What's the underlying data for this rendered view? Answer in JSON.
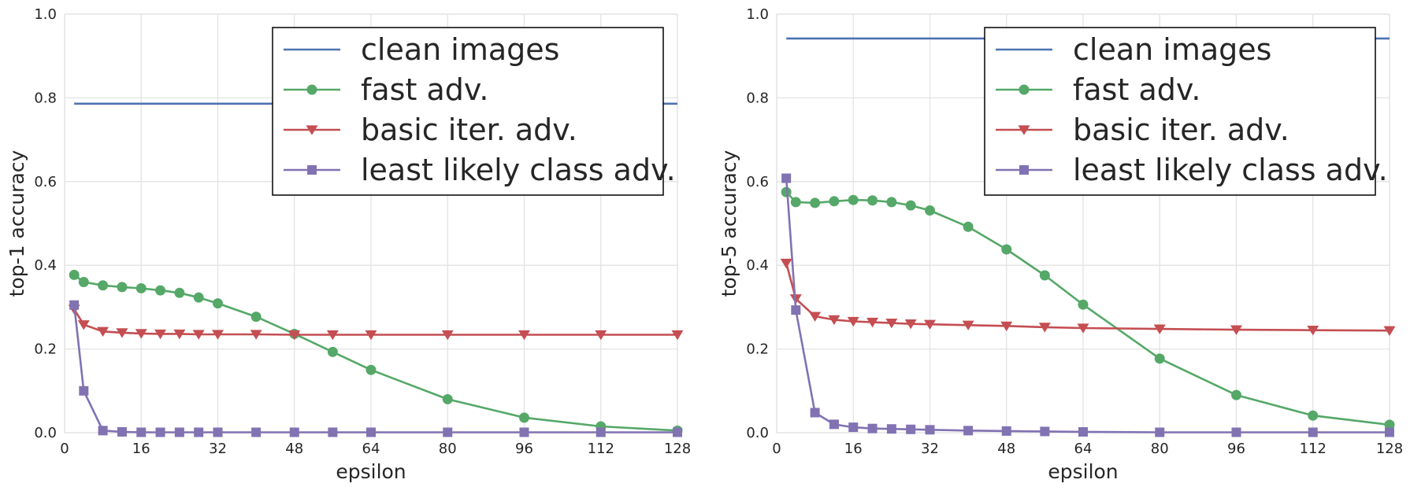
{
  "colors": {
    "clean": "#4c72b0",
    "fast": "#55a868",
    "basic": "#c44e52",
    "least": "#8172b2",
    "grid": "#e3e3e3",
    "panel_border": "#cccccc"
  },
  "chart_data": [
    {
      "type": "line",
      "xlabel": "epsilon",
      "ylabel": "top-1 accuracy",
      "xlim": [
        0,
        128
      ],
      "ylim": [
        0,
        1.0
      ],
      "xticks": [
        "0",
        "16",
        "32",
        "48",
        "64",
        "80",
        "96",
        "112",
        "128"
      ],
      "yticks": [
        "0.0",
        "0.2",
        "0.4",
        "0.6",
        "0.8",
        "1.0"
      ],
      "grid": true,
      "legend_position": "top-right",
      "series": [
        {
          "name": "clean images",
          "key": "clean",
          "marker": "none",
          "x": [
            2,
            128
          ],
          "y": [
            0.786,
            0.786
          ]
        },
        {
          "name": "fast adv.",
          "key": "fast",
          "marker": "circle",
          "x": [
            2,
            4,
            8,
            12,
            16,
            20,
            24,
            28,
            32,
            40,
            48,
            56,
            64,
            80,
            96,
            112,
            128
          ],
          "y": [
            0.377,
            0.36,
            0.352,
            0.348,
            0.345,
            0.34,
            0.334,
            0.323,
            0.309,
            0.277,
            0.236,
            0.193,
            0.15,
            0.08,
            0.036,
            0.015,
            0.005
          ]
        },
        {
          "name": "basic iter. adv.",
          "key": "basic",
          "marker": "triangle-down",
          "x": [
            2,
            4,
            8,
            12,
            16,
            20,
            24,
            28,
            32,
            40,
            48,
            56,
            64,
            80,
            96,
            112,
            128
          ],
          "y": [
            0.295,
            0.258,
            0.242,
            0.239,
            0.237,
            0.236,
            0.236,
            0.235,
            0.235,
            0.235,
            0.234,
            0.234,
            0.234,
            0.234,
            0.234,
            0.234,
            0.234
          ]
        },
        {
          "name": "least likely class adv.",
          "key": "least",
          "marker": "square",
          "x": [
            2,
            4,
            8,
            12,
            16,
            20,
            24,
            28,
            32,
            40,
            48,
            56,
            64,
            80,
            96,
            112,
            128
          ],
          "y": [
            0.305,
            0.1,
            0.005,
            0.002,
            0.001,
            0.001,
            0.001,
            0.001,
            0.001,
            0.001,
            0.001,
            0.001,
            0.001,
            0.001,
            0.001,
            0.001,
            0.001
          ]
        }
      ]
    },
    {
      "type": "line",
      "xlabel": "epsilon",
      "ylabel": "top-5 accuracy",
      "xlim": [
        0,
        128
      ],
      "ylim": [
        0,
        1.0
      ],
      "xticks": [
        "0",
        "16",
        "32",
        "48",
        "64",
        "80",
        "96",
        "112",
        "128"
      ],
      "yticks": [
        "0.0",
        "0.2",
        "0.4",
        "0.6",
        "0.8",
        "1.0"
      ],
      "grid": true,
      "legend_position": "top-right",
      "series": [
        {
          "name": "clean images",
          "key": "clean",
          "marker": "none",
          "x": [
            2,
            128
          ],
          "y": [
            0.942,
            0.942
          ]
        },
        {
          "name": "fast adv.",
          "key": "fast",
          "marker": "circle",
          "x": [
            2,
            4,
            8,
            12,
            16,
            20,
            24,
            28,
            32,
            40,
            48,
            56,
            64,
            80,
            96,
            112,
            128
          ],
          "y": [
            0.575,
            0.551,
            0.549,
            0.553,
            0.556,
            0.555,
            0.551,
            0.543,
            0.531,
            0.492,
            0.438,
            0.376,
            0.306,
            0.177,
            0.09,
            0.041,
            0.019
          ]
        },
        {
          "name": "basic iter. adv.",
          "key": "basic",
          "marker": "triangle-down",
          "x": [
            2,
            4,
            8,
            12,
            16,
            20,
            24,
            28,
            32,
            40,
            48,
            56,
            64,
            80,
            96,
            112,
            128
          ],
          "y": [
            0.405,
            0.32,
            0.278,
            0.27,
            0.266,
            0.264,
            0.262,
            0.26,
            0.259,
            0.257,
            0.255,
            0.252,
            0.25,
            0.248,
            0.246,
            0.245,
            0.244
          ]
        },
        {
          "name": "least likely class adv.",
          "key": "least",
          "marker": "square",
          "x": [
            2,
            4,
            8,
            12,
            16,
            20,
            24,
            28,
            32,
            40,
            48,
            56,
            64,
            80,
            96,
            112,
            128
          ],
          "y": [
            0.608,
            0.293,
            0.048,
            0.02,
            0.013,
            0.01,
            0.009,
            0.008,
            0.007,
            0.005,
            0.004,
            0.003,
            0.002,
            0.001,
            0.001,
            0.001,
            0.001
          ]
        }
      ]
    }
  ]
}
